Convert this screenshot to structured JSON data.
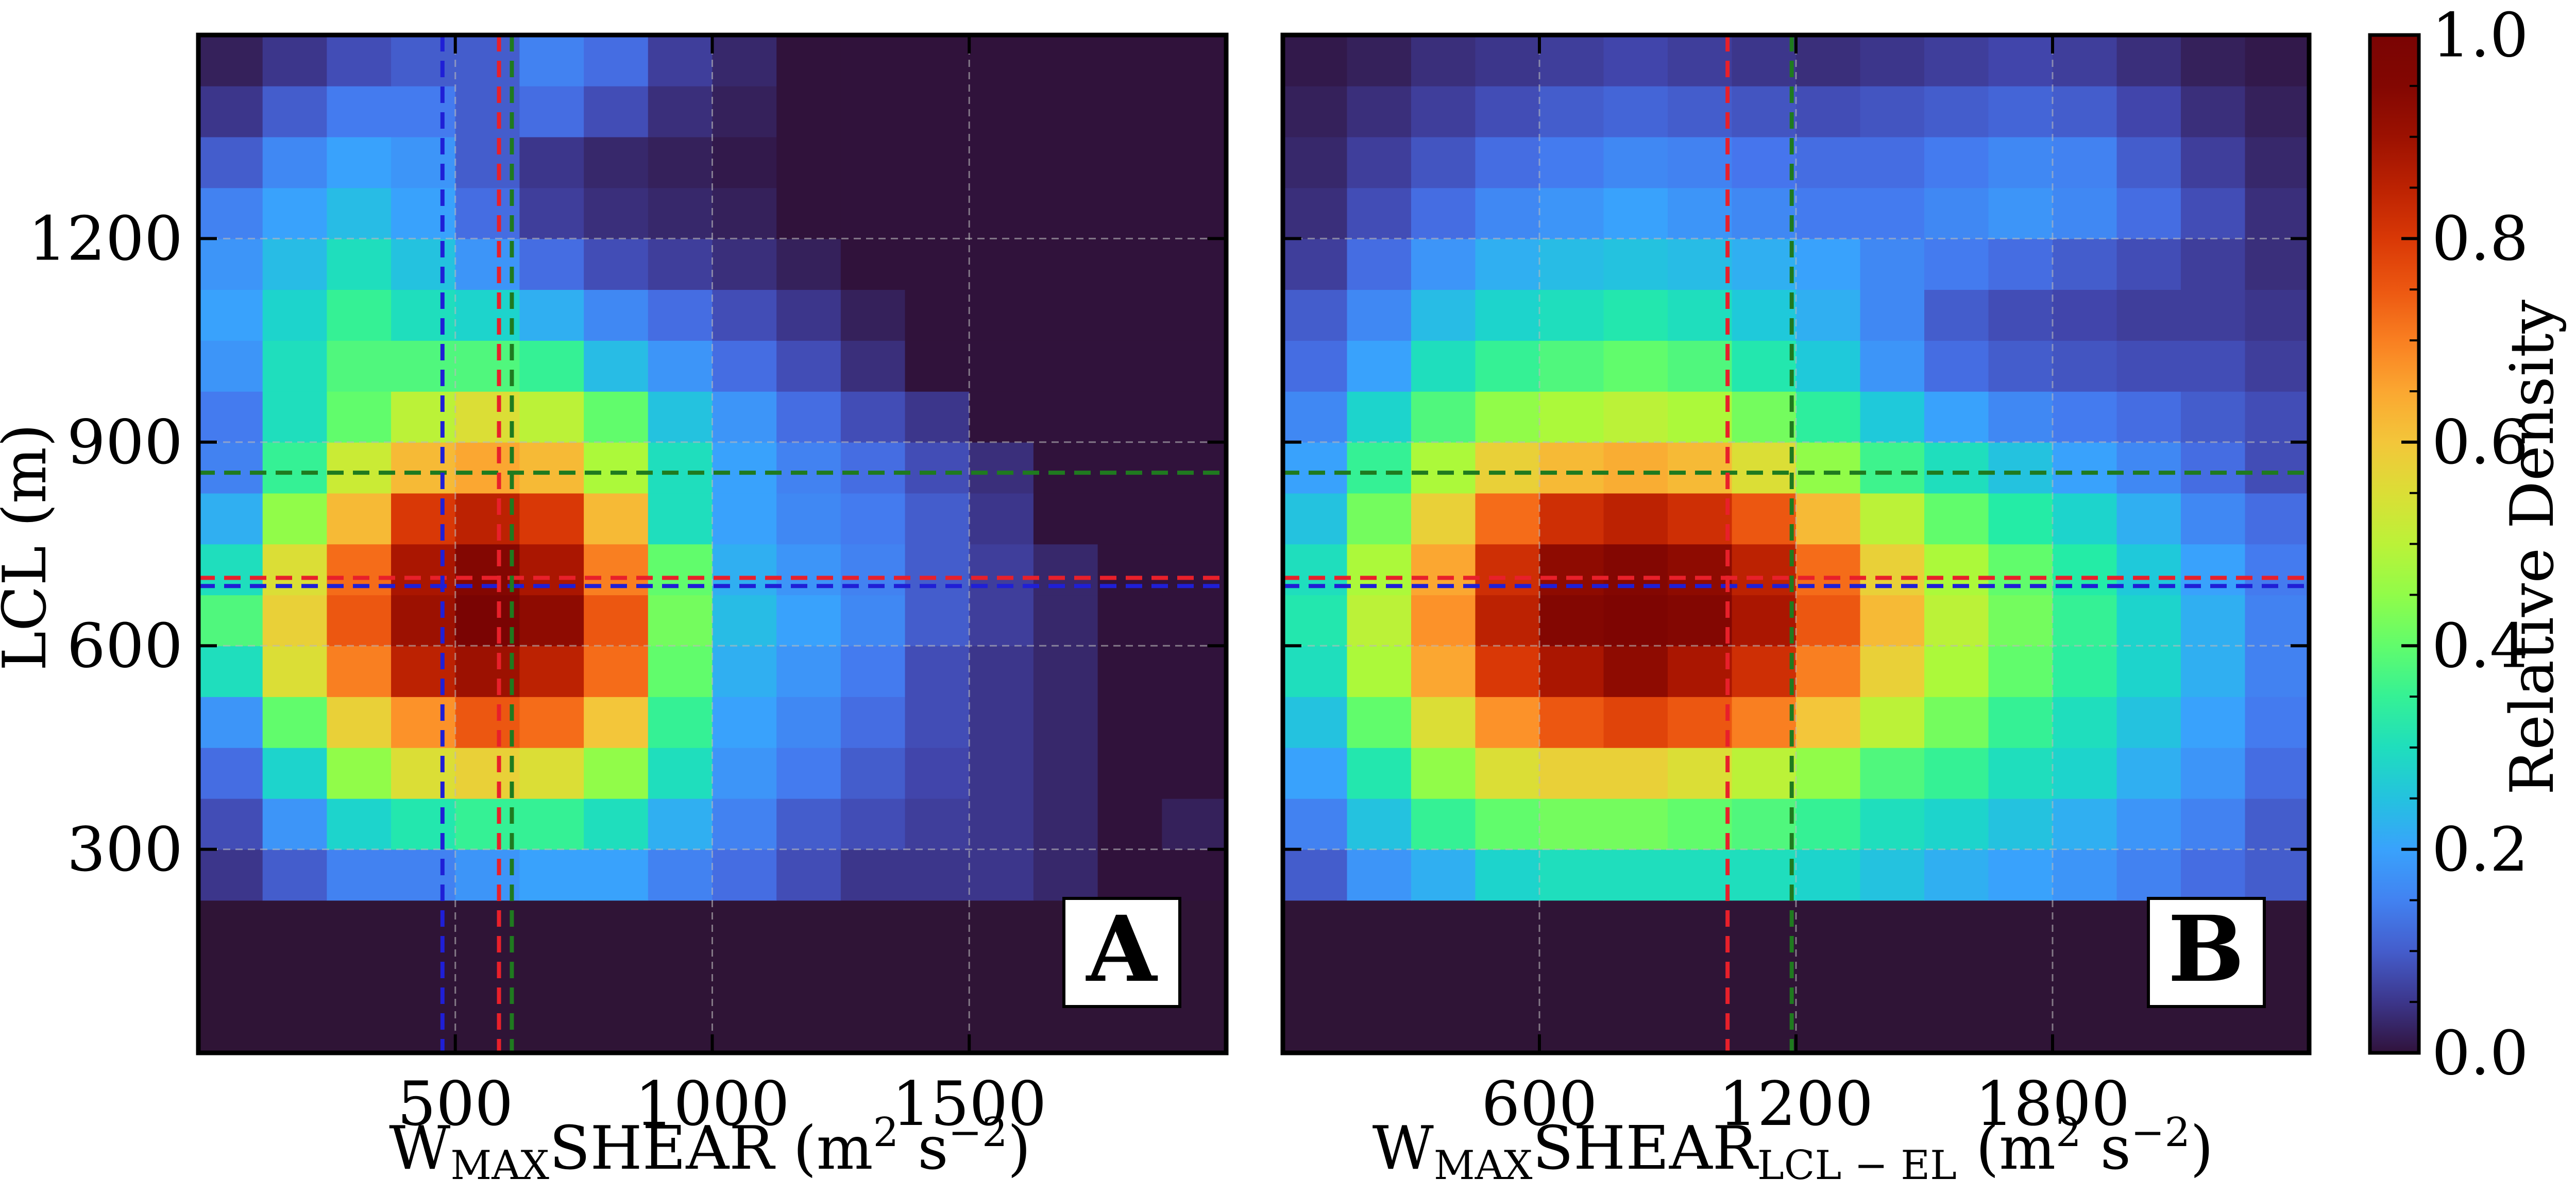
{
  "chart_data": [
    {
      "type": "heatmap",
      "panel_label": "A",
      "xlabel": {
        "main": "W",
        "sub": "MAX",
        "rest": "SHEAR (m",
        "sup": "2",
        "rest2": " s",
        "sup2": "−2",
        "close": ")"
      },
      "ylabel": "LCL (m)",
      "xlim": [
        0,
        2000
      ],
      "ylim": [
        0,
        1500
      ],
      "xticks": [
        500,
        1000,
        1500
      ],
      "xtick_labels": [
        "500",
        "1000",
        "1500"
      ],
      "yticks": [
        300,
        600,
        900,
        1200
      ],
      "ytick_labels": [
        "300",
        "600",
        "900",
        "1200"
      ],
      "x_bin_edges": [
        0,
        125,
        250,
        375,
        500,
        625,
        750,
        875,
        1000,
        1125,
        1250,
        1375,
        1500,
        1625,
        1750,
        1875,
        2000
      ],
      "y_bin_edges": [
        225,
        300,
        375,
        450,
        525,
        600,
        675,
        750,
        825,
        900,
        975,
        1050,
        1125,
        1200,
        1275,
        1350,
        1425,
        1500
      ],
      "density": [
        [
          0.05,
          0.1,
          0.15,
          0.15,
          0.18,
          0.2,
          0.2,
          0.15,
          0.12,
          0.08,
          0.05,
          0.05,
          0.05,
          0.03,
          0.0,
          0.0
        ],
        [
          0.08,
          0.18,
          0.28,
          0.32,
          0.35,
          0.35,
          0.3,
          0.22,
          0.15,
          0.1,
          0.08,
          0.06,
          0.05,
          0.03,
          0.0,
          0.02
        ],
        [
          0.12,
          0.28,
          0.45,
          0.55,
          0.58,
          0.55,
          0.45,
          0.3,
          0.18,
          0.14,
          0.1,
          0.07,
          0.05,
          0.03,
          0.0,
          0.0
        ],
        [
          0.18,
          0.4,
          0.58,
          0.68,
          0.75,
          0.72,
          0.6,
          0.35,
          0.2,
          0.16,
          0.12,
          0.08,
          0.05,
          0.03,
          0.0,
          0.0
        ],
        [
          0.3,
          0.55,
          0.7,
          0.85,
          0.9,
          0.85,
          0.72,
          0.4,
          0.22,
          0.18,
          0.14,
          0.08,
          0.05,
          0.03,
          0.0,
          0.0
        ],
        [
          0.38,
          0.58,
          0.75,
          0.9,
          1.0,
          0.92,
          0.75,
          0.42,
          0.24,
          0.2,
          0.16,
          0.1,
          0.06,
          0.03,
          0.0,
          0.0
        ],
        [
          0.3,
          0.55,
          0.72,
          0.88,
          0.95,
          0.88,
          0.7,
          0.4,
          0.22,
          0.18,
          0.15,
          0.1,
          0.06,
          0.03,
          0.0,
          0.0
        ],
        [
          0.22,
          0.45,
          0.62,
          0.8,
          0.85,
          0.8,
          0.62,
          0.3,
          0.2,
          0.16,
          0.14,
          0.1,
          0.05,
          0.0,
          0.0,
          0.0
        ],
        [
          0.15,
          0.35,
          0.52,
          0.62,
          0.65,
          0.62,
          0.48,
          0.3,
          0.2,
          0.15,
          0.12,
          0.08,
          0.04,
          0.0,
          0.0,
          0.0
        ],
        [
          0.14,
          0.3,
          0.4,
          0.5,
          0.55,
          0.5,
          0.4,
          0.25,
          0.18,
          0.12,
          0.08,
          0.05,
          0.0,
          0.0,
          0.0,
          0.0
        ],
        [
          0.18,
          0.3,
          0.38,
          0.38,
          0.38,
          0.35,
          0.24,
          0.18,
          0.12,
          0.08,
          0.04,
          0.0,
          0.0,
          0.0,
          0.0,
          0.0
        ],
        [
          0.2,
          0.28,
          0.35,
          0.3,
          0.28,
          0.22,
          0.16,
          0.12,
          0.08,
          0.05,
          0.02,
          0.0,
          0.0,
          0.0,
          0.0,
          0.0
        ],
        [
          0.18,
          0.24,
          0.3,
          0.25,
          0.18,
          0.12,
          0.08,
          0.06,
          0.04,
          0.02,
          0.0,
          0.0,
          0.0,
          0.0,
          0.0,
          0.0
        ],
        [
          0.15,
          0.2,
          0.24,
          0.2,
          0.12,
          0.06,
          0.04,
          0.03,
          0.02,
          0.0,
          0.0,
          0.0,
          0.0,
          0.0,
          0.0,
          0.0
        ],
        [
          0.1,
          0.16,
          0.2,
          0.18,
          0.1,
          0.05,
          0.03,
          0.02,
          0.01,
          0.0,
          0.0,
          0.0,
          0.0,
          0.0,
          0.0,
          0.0
        ],
        [
          0.05,
          0.1,
          0.14,
          0.14,
          0.1,
          0.12,
          0.08,
          0.04,
          0.02,
          0.0,
          0.0,
          0.0,
          0.0,
          0.0,
          0.0,
          0.0
        ],
        [
          0.02,
          0.05,
          0.08,
          0.1,
          0.1,
          0.15,
          0.12,
          0.06,
          0.03,
          0.0,
          0.0,
          0.0,
          0.0,
          0.0,
          0.0,
          0.0
        ]
      ],
      "vlines": [
        {
          "x": 475,
          "color": "#1f1fd6"
        },
        {
          "x": 585,
          "color": "#e8202a"
        },
        {
          "x": 610,
          "color": "#1f7a1f"
        }
      ],
      "hlines": [
        {
          "y": 855,
          "color": "#1f7a1f"
        },
        {
          "y": 700,
          "color": "#e8202a"
        },
        {
          "y": 688,
          "color": "#1f1fd6"
        }
      ]
    },
    {
      "type": "heatmap",
      "panel_label": "B",
      "xlabel": {
        "main": "W",
        "sub": "MAX",
        "rest": "SHEAR",
        "sub2": "LCL − EL",
        "rest2": " (m",
        "sup": "2",
        "rest3": " s",
        "sup2": "−2",
        "close": ")"
      },
      "ylabel": "",
      "xlim": [
        0,
        2400
      ],
      "ylim": [
        0,
        1500
      ],
      "xticks": [
        600,
        1200,
        1800
      ],
      "xtick_labels": [
        "600",
        "1200",
        "1800"
      ],
      "yticks": [
        300,
        600,
        900,
        1200
      ],
      "ytick_labels": [],
      "x_bin_edges": [
        0,
        150,
        300,
        450,
        600,
        750,
        900,
        1050,
        1200,
        1350,
        1500,
        1650,
        1800,
        1950,
        2100,
        2250,
        2400
      ],
      "y_bin_edges": [
        225,
        300,
        375,
        450,
        525,
        600,
        675,
        750,
        825,
        900,
        975,
        1050,
        1125,
        1200,
        1275,
        1350,
        1425,
        1500
      ],
      "density": [
        [
          0.1,
          0.18,
          0.22,
          0.28,
          0.3,
          0.3,
          0.3,
          0.3,
          0.28,
          0.25,
          0.22,
          0.2,
          0.18,
          0.15,
          0.12,
          0.1
        ],
        [
          0.15,
          0.25,
          0.35,
          0.4,
          0.42,
          0.42,
          0.4,
          0.38,
          0.35,
          0.3,
          0.28,
          0.25,
          0.22,
          0.18,
          0.15,
          0.1
        ],
        [
          0.2,
          0.32,
          0.45,
          0.55,
          0.58,
          0.58,
          0.55,
          0.5,
          0.45,
          0.38,
          0.35,
          0.3,
          0.28,
          0.22,
          0.18,
          0.12
        ],
        [
          0.25,
          0.4,
          0.55,
          0.68,
          0.75,
          0.78,
          0.75,
          0.7,
          0.6,
          0.5,
          0.42,
          0.35,
          0.3,
          0.25,
          0.2,
          0.14
        ],
        [
          0.3,
          0.48,
          0.65,
          0.8,
          0.88,
          0.92,
          0.88,
          0.82,
          0.7,
          0.58,
          0.48,
          0.4,
          0.34,
          0.28,
          0.22,
          0.15
        ],
        [
          0.32,
          0.5,
          0.68,
          0.85,
          0.95,
          0.98,
          0.95,
          0.88,
          0.75,
          0.62,
          0.5,
          0.42,
          0.35,
          0.28,
          0.22,
          0.15
        ],
        [
          0.3,
          0.48,
          0.65,
          0.82,
          0.92,
          0.95,
          0.92,
          0.85,
          0.72,
          0.58,
          0.48,
          0.4,
          0.33,
          0.26,
          0.2,
          0.14
        ],
        [
          0.25,
          0.42,
          0.58,
          0.72,
          0.82,
          0.85,
          0.82,
          0.75,
          0.62,
          0.5,
          0.4,
          0.33,
          0.28,
          0.22,
          0.16,
          0.12
        ],
        [
          0.2,
          0.35,
          0.48,
          0.58,
          0.62,
          0.64,
          0.62,
          0.55,
          0.45,
          0.36,
          0.3,
          0.25,
          0.2,
          0.16,
          0.12,
          0.08
        ],
        [
          0.16,
          0.28,
          0.38,
          0.45,
          0.48,
          0.5,
          0.48,
          0.42,
          0.34,
          0.26,
          0.2,
          0.16,
          0.14,
          0.12,
          0.1,
          0.08
        ],
        [
          0.12,
          0.2,
          0.3,
          0.35,
          0.38,
          0.4,
          0.38,
          0.32,
          0.26,
          0.18,
          0.12,
          0.1,
          0.09,
          0.08,
          0.08,
          0.06
        ],
        [
          0.1,
          0.16,
          0.24,
          0.28,
          0.3,
          0.32,
          0.3,
          0.26,
          0.22,
          0.16,
          0.1,
          0.08,
          0.07,
          0.06,
          0.06,
          0.05
        ],
        [
          0.06,
          0.12,
          0.18,
          0.22,
          0.24,
          0.25,
          0.24,
          0.22,
          0.2,
          0.16,
          0.14,
          0.12,
          0.1,
          0.08,
          0.06,
          0.04
        ],
        [
          0.04,
          0.08,
          0.12,
          0.16,
          0.18,
          0.2,
          0.18,
          0.16,
          0.14,
          0.14,
          0.16,
          0.18,
          0.16,
          0.12,
          0.08,
          0.04
        ],
        [
          0.03,
          0.06,
          0.09,
          0.12,
          0.14,
          0.16,
          0.15,
          0.13,
          0.12,
          0.12,
          0.14,
          0.16,
          0.15,
          0.1,
          0.06,
          0.03
        ],
        [
          0.02,
          0.04,
          0.06,
          0.08,
          0.1,
          0.11,
          0.1,
          0.09,
          0.08,
          0.09,
          0.1,
          0.11,
          0.1,
          0.07,
          0.04,
          0.02
        ],
        [
          0.01,
          0.02,
          0.04,
          0.05,
          0.06,
          0.07,
          0.06,
          0.05,
          0.04,
          0.05,
          0.06,
          0.07,
          0.06,
          0.04,
          0.02,
          0.01
        ]
      ],
      "vlines": [
        {
          "x": 1040,
          "color": "#e8202a"
        },
        {
          "x": 1190,
          "color": "#1f7a1f"
        }
      ],
      "hlines": [
        {
          "y": 855,
          "color": "#1f7a1f"
        },
        {
          "y": 700,
          "color": "#e8202a"
        },
        {
          "y": 688,
          "color": "#1f1fd6"
        }
      ]
    }
  ],
  "colorbar": {
    "label": "Relative Density",
    "range": [
      0.0,
      1.0
    ],
    "ticks": [
      0.0,
      0.2,
      0.4,
      0.6,
      0.8,
      1.0
    ],
    "tick_labels": [
      "0.0",
      "0.2",
      "0.4",
      "0.6",
      "0.8",
      "1.0"
    ],
    "colormap": "turbo",
    "background_color": "#2f1436"
  }
}
